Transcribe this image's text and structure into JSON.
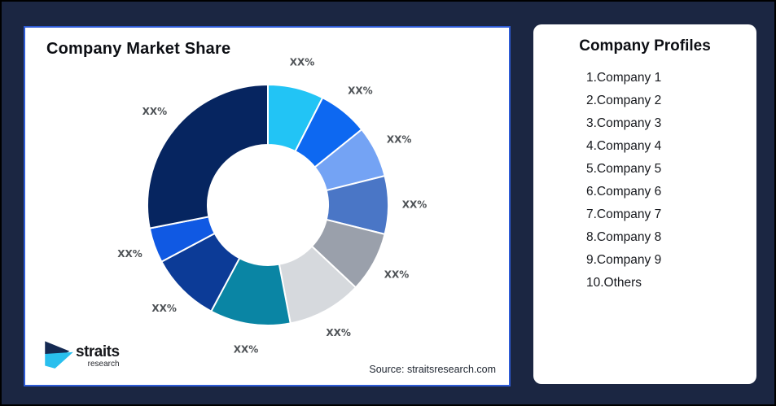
{
  "theme": {
    "background": "#1B2642",
    "frame_border": "#000000",
    "chart_card_border": "#2E5BD5",
    "card_background": "#FFFFFF",
    "label_color": "#4E5256"
  },
  "market_share_card": {
    "title": "Company Market Share",
    "source": "Source: straitsresearch.com",
    "logo": {
      "name": "straits",
      "sub": "research",
      "icon": "double-arrow-icon",
      "icon_colors": [
        "#152A52",
        "#29BFEE"
      ]
    }
  },
  "profiles_card": {
    "title": "Company Profiles",
    "items": [
      "1.Company 1",
      "2.Company 2",
      "3.Company 3",
      "4.Company 4",
      "5.Company 5",
      "6.Company 6",
      "7.Company 7",
      "8.Company 8",
      "9.Company 9",
      "10.Others"
    ]
  },
  "chart_data": {
    "type": "pie",
    "donut": true,
    "title": "Company Market Share",
    "labels": [
      "XX%",
      "XX%",
      "XX%",
      "XX%",
      "XX%",
      "XX%",
      "XX%",
      "XX%",
      "XX%",
      "XX%"
    ],
    "values": [
      7.5,
      6.7,
      6.9,
      7.8,
      8.1,
      10.0,
      10.8,
      9.4,
      4.7,
      28.1
    ],
    "colors": [
      "#22C4F5",
      "#0D68F1",
      "#74A3F4",
      "#4A76C6",
      "#9AA0AB",
      "#D6D9DD",
      "#0A85A4",
      "#0C3B97",
      "#1059E3",
      "#062560"
    ],
    "start_angle_deg": 0,
    "clockwise": true,
    "inner_radius_ratio": 0.5,
    "legend": "none",
    "slice_gap_stroke": "#FFFFFF"
  }
}
